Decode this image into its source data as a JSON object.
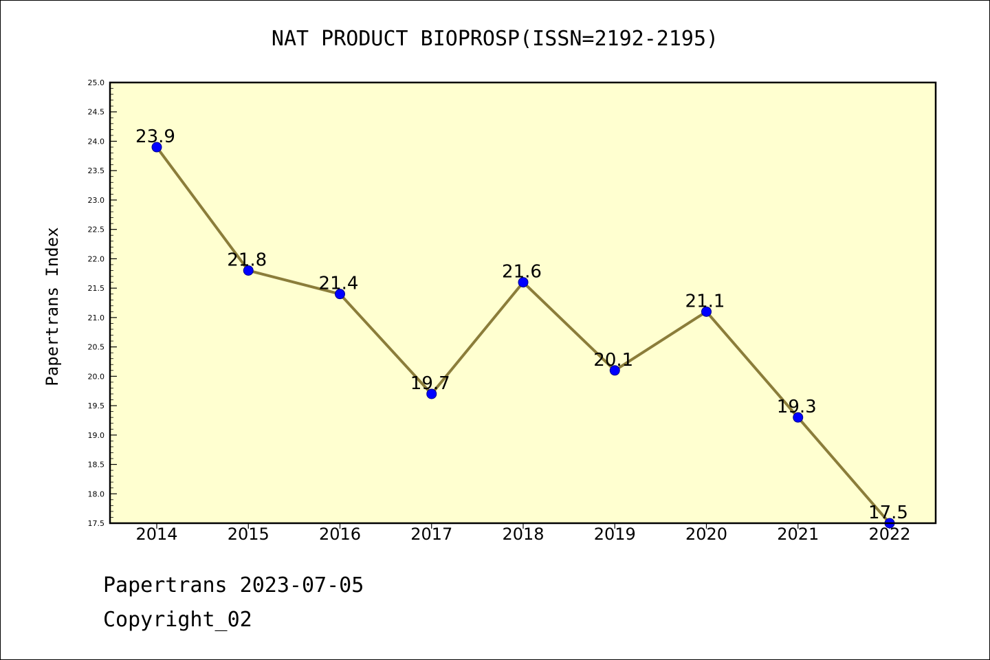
{
  "chart_data": {
    "type": "line",
    "title": "NAT PRODUCT BIOPROSP(ISSN=2192-2195)",
    "xlabel": "",
    "ylabel": "Papertrans Index",
    "x": [
      "2014",
      "2015",
      "2016",
      "2017",
      "2018",
      "2019",
      "2020",
      "2021",
      "2022"
    ],
    "series": [
      {
        "values": [
          23.9,
          21.8,
          21.4,
          19.7,
          21.6,
          20.1,
          21.1,
          19.3,
          17.5
        ],
        "data_labels": [
          "23.9",
          "21.8",
          "21.4",
          "19.7",
          "21.6",
          "20.1",
          "21.1",
          "19.3",
          "17.5"
        ]
      }
    ],
    "ylim": [
      17.5,
      25.0
    ],
    "yticks": [
      "17.5",
      "18.0",
      "18.5",
      "19.0",
      "19.5",
      "20.0",
      "20.5",
      "21.0",
      "21.5",
      "22.0",
      "22.5",
      "23.0",
      "23.5",
      "24.0",
      "24.5",
      "25.0"
    ],
    "grid": false,
    "legend": "none",
    "colors": {
      "plot_background": "#ffffd0",
      "line": "#8b7d3a",
      "marker": "#0000ff",
      "marker_edge": "#00008b"
    }
  },
  "footer": {
    "line1": "Papertrans 2023-07-05",
    "line2": "Copyright_02"
  }
}
